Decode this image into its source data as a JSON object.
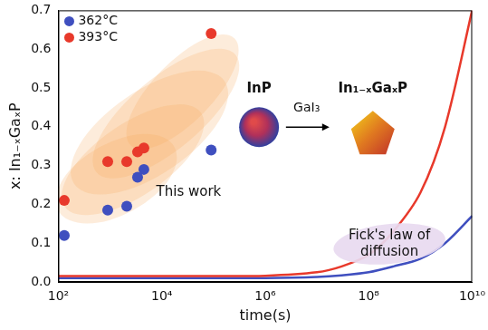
{
  "chart_data": {
    "type": "scatter",
    "x_label": "time(s)",
    "y_label": "x: In₁₋ₓGaₓP",
    "log": "x",
    "grid": false,
    "legend": "upper left",
    "xlim": [
      100,
      10000000000
    ],
    "xticks": [
      {
        "value": 100,
        "label": "10²"
      },
      {
        "value": 10000,
        "label": "10⁴"
      },
      {
        "value": 1000000,
        "label": "10⁶"
      },
      {
        "value": 100000000,
        "label": "10⁸"
      },
      {
        "value": 10000000000,
        "label": "10¹⁰"
      }
    ],
    "ylim": [
      0,
      0.7
    ],
    "yticks": [
      {
        "value": 0,
        "label": "0.0"
      },
      0.1,
      0.2,
      0.3,
      0.4,
      0.5,
      0.6,
      0.7
    ],
    "series": [
      {
        "name": "362°C",
        "color": "#3f4fbf",
        "type": "scatter",
        "marker": "circle",
        "x": [
          130,
          900,
          2100,
          3400,
          4500,
          90000
        ],
        "values": [
          0.12,
          0.185,
          0.195,
          0.27,
          0.29,
          0.34
        ]
      },
      {
        "name": "393°C",
        "color": "#e8392b",
        "type": "scatter",
        "marker": "circle",
        "x": [
          130,
          900,
          2100,
          3400,
          4500,
          90000
        ],
        "values": [
          0.21,
          0.31,
          0.31,
          0.335,
          0.345,
          0.64
        ]
      },
      {
        "color": "#e8392b",
        "type": "line",
        "line_style": "solid",
        "x": [
          100,
          100000,
          1000000,
          10000000,
          30000000,
          100000000,
          300000000,
          1000000000,
          3000000000,
          10000000000
        ],
        "values": [
          0.015,
          0.015,
          0.016,
          0.025,
          0.04,
          0.07,
          0.13,
          0.23,
          0.4,
          0.7
        ]
      },
      {
        "color": "#3f4fbf",
        "type": "line",
        "line_style": "solid",
        "x": [
          100,
          100000,
          1000000,
          10000000,
          30000000,
          100000000,
          300000000,
          1000000000,
          3000000000,
          10000000000
        ],
        "values": [
          0.01,
          0.01,
          0.01,
          0.013,
          0.017,
          0.025,
          0.04,
          0.06,
          0.1,
          0.17
        ]
      }
    ],
    "annotations": [
      {
        "text": "This work"
      },
      {
        "text": "InP"
      },
      {
        "text": "GaI₃"
      },
      {
        "text": "In₁₋ₓGaₓP"
      },
      {
        "text": "Fick's law of diffusion"
      }
    ]
  }
}
